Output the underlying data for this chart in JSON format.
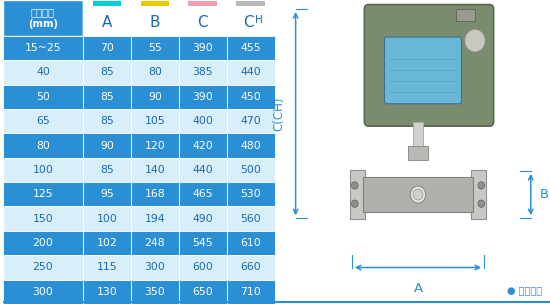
{
  "headers": [
    "仪表口径\n(mm)",
    "A",
    "B",
    "C",
    "CH"
  ],
  "header_colors_underline": [
    "none",
    "#00d0d0",
    "#e8c800",
    "#f0a0b0",
    "#b8b8b8"
  ],
  "rows": [
    [
      "15~25",
      "70",
      "55",
      "390",
      "455"
    ],
    [
      "40",
      "85",
      "80",
      "385",
      "440"
    ],
    [
      "50",
      "85",
      "90",
      "390",
      "450"
    ],
    [
      "65",
      "85",
      "105",
      "400",
      "470"
    ],
    [
      "80",
      "90",
      "120",
      "420",
      "480"
    ],
    [
      "100",
      "85",
      "140",
      "440",
      "500"
    ],
    [
      "125",
      "95",
      "168",
      "465",
      "530"
    ],
    [
      "150",
      "100",
      "194",
      "490",
      "560"
    ],
    [
      "200",
      "102",
      "248",
      "545",
      "610"
    ],
    [
      "250",
      "115",
      "300",
      "600",
      "660"
    ],
    [
      "300",
      "130",
      "350",
      "650",
      "710"
    ]
  ],
  "row_bg_dark": "#2b8fd6",
  "row_bg_light": "#d8eef8",
  "text_dark_row": "#ffffff",
  "text_light_row": "#1a6ab5",
  "header_bg": "#2b8fd6",
  "header_text": "#ffffff",
  "col_header_text": "#1a6ab5",
  "border_color": "#ffffff",
  "fig_bg": "#ffffff",
  "diagram_label_color": "#2b8fd6",
  "note_text": "● 常规仪表",
  "note_color": "#2b8fd6",
  "diagram_bg": "#e8f4fb"
}
